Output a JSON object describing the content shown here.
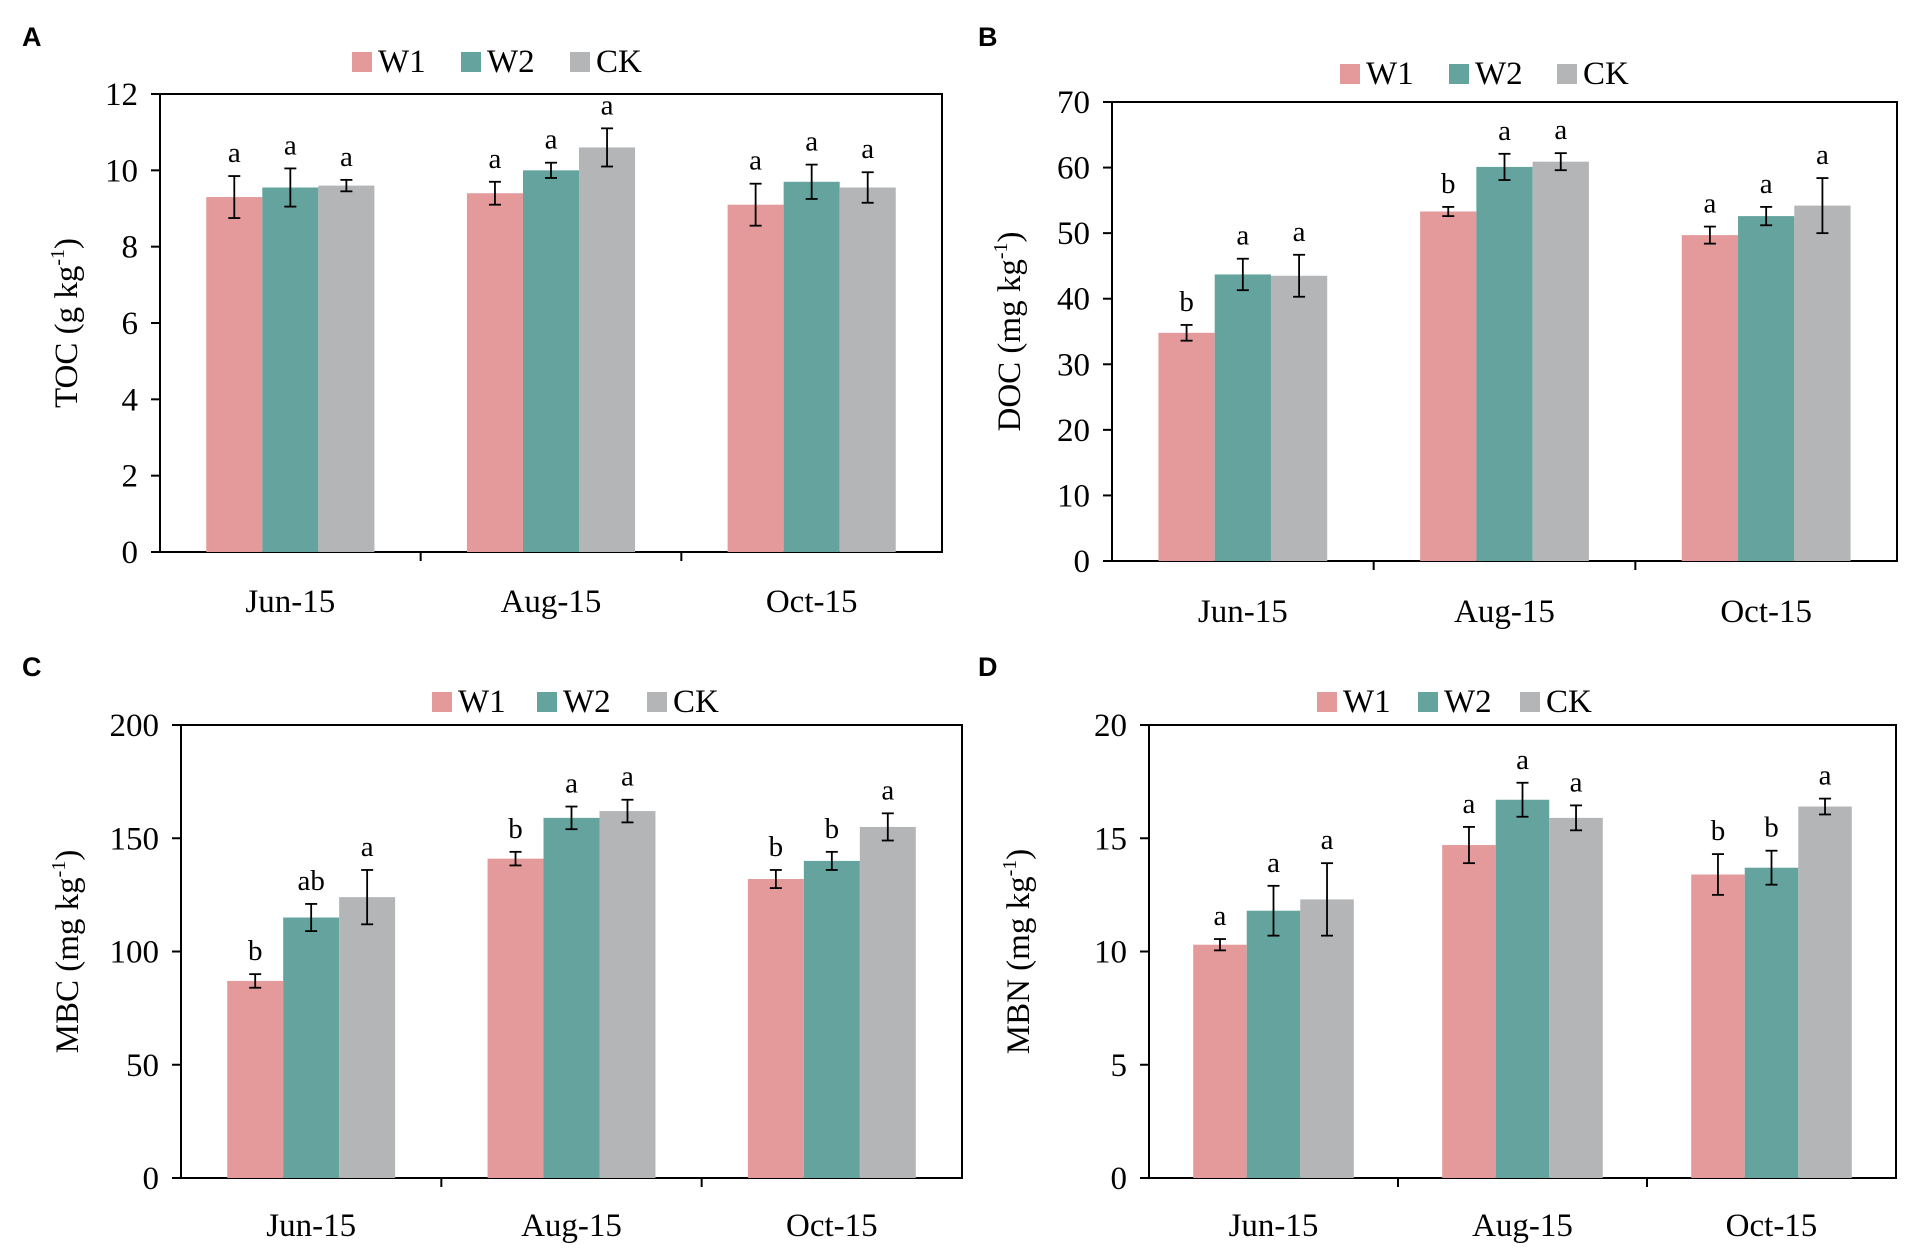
{
  "colors": {
    "W1": "#e49a9a",
    "W2": "#65a39f",
    "CK": "#b3b5b6"
  },
  "chart_data": [
    {
      "panel": "A",
      "type": "bar",
      "legend": [
        "W1",
        "W2",
        "CK"
      ],
      "categories": [
        "Jun-15",
        "Aug-15",
        "Oct-15"
      ],
      "ylabel_main": "TOC (g kg",
      "ylabel_sup": "-1",
      "ylabel_end": ")",
      "ylim": [
        0,
        12
      ],
      "yticks": [
        0,
        2,
        4,
        6,
        8,
        10,
        12
      ],
      "series": [
        {
          "name": "W1",
          "values": [
            9.3,
            9.4,
            9.1
          ],
          "errors": [
            0.55,
            0.3,
            0.55
          ],
          "letters": [
            "a",
            "a",
            "a"
          ]
        },
        {
          "name": "W2",
          "values": [
            9.55,
            10.0,
            9.7
          ],
          "errors": [
            0.5,
            0.2,
            0.45
          ],
          "letters": [
            "a",
            "a",
            "a"
          ]
        },
        {
          "name": "CK",
          "values": [
            9.6,
            10.6,
            9.55
          ],
          "errors": [
            0.15,
            0.5,
            0.4
          ],
          "letters": [
            "a",
            "a",
            "a"
          ]
        }
      ]
    },
    {
      "panel": "B",
      "type": "bar",
      "legend": [
        "W1",
        "W2",
        "CK"
      ],
      "categories": [
        "Jun-15",
        "Aug-15",
        "Oct-15"
      ],
      "ylabel_main": "DOC (mg kg",
      "ylabel_sup": "-1",
      "ylabel_end": ")",
      "ylim": [
        0,
        70
      ],
      "yticks": [
        0,
        10,
        20,
        30,
        40,
        50,
        60,
        70
      ],
      "series": [
        {
          "name": "W1",
          "values": [
            34.8,
            53.3,
            49.7
          ],
          "errors": [
            1.2,
            0.7,
            1.3
          ],
          "letters": [
            "b",
            "b",
            "a"
          ]
        },
        {
          "name": "W2",
          "values": [
            43.7,
            60.1,
            52.6
          ],
          "errors": [
            2.4,
            2.0,
            1.4
          ],
          "letters": [
            "a",
            "a",
            "a"
          ]
        },
        {
          "name": "CK",
          "values": [
            43.5,
            60.9,
            54.2
          ],
          "errors": [
            3.2,
            1.3,
            4.2
          ],
          "letters": [
            "a",
            "a",
            "a"
          ]
        }
      ]
    },
    {
      "panel": "C",
      "type": "bar",
      "legend": [
        "W1",
        "W2",
        "CK"
      ],
      "categories": [
        "Jun-15",
        "Aug-15",
        "Oct-15"
      ],
      "ylabel_main": "MBC (mg kg",
      "ylabel_sup": "-1",
      "ylabel_end": ")",
      "ylim": [
        0,
        200
      ],
      "yticks": [
        0,
        50,
        100,
        150,
        200
      ],
      "series": [
        {
          "name": "W1",
          "values": [
            87,
            141,
            132
          ],
          "errors": [
            3,
            3,
            4
          ],
          "letters": [
            "b",
            "b",
            "b"
          ]
        },
        {
          "name": "W2",
          "values": [
            115,
            159,
            140
          ],
          "errors": [
            6,
            5,
            4
          ],
          "letters": [
            "ab",
            "a",
            "b"
          ]
        },
        {
          "name": "CK",
          "values": [
            124,
            162,
            155
          ],
          "errors": [
            12,
            5,
            6
          ],
          "letters": [
            "a",
            "a",
            "a"
          ]
        }
      ]
    },
    {
      "panel": "D",
      "type": "bar",
      "legend": [
        "W1",
        "W2",
        "CK"
      ],
      "categories": [
        "Jun-15",
        "Aug-15",
        "Oct-15"
      ],
      "ylabel_main": "MBN (mg kg",
      "ylabel_sup": "-1",
      "ylabel_end": ")",
      "ylim": [
        0,
        20
      ],
      "yticks": [
        0,
        5,
        10,
        15,
        20
      ],
      "series": [
        {
          "name": "W1",
          "values": [
            10.3,
            14.7,
            13.4
          ],
          "errors": [
            0.25,
            0.8,
            0.9
          ],
          "letters": [
            "a",
            "a",
            "b"
          ]
        },
        {
          "name": "W2",
          "values": [
            11.8,
            16.7,
            13.7
          ],
          "errors": [
            1.1,
            0.75,
            0.75
          ],
          "letters": [
            "a",
            "a",
            "b"
          ]
        },
        {
          "name": "CK",
          "values": [
            12.3,
            15.9,
            16.4
          ],
          "errors": [
            1.6,
            0.55,
            0.35
          ],
          "letters": [
            "a",
            "a",
            "a"
          ]
        }
      ]
    }
  ]
}
